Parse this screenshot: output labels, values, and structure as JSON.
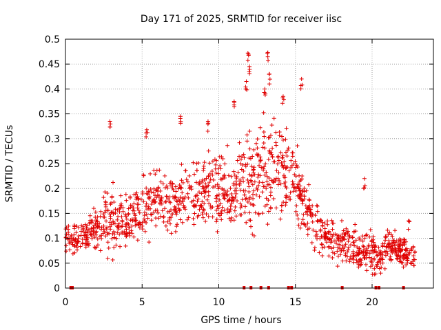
{
  "chart_data": {
    "type": "scatter",
    "title": "Day 171 of 2025, SRMTID for receiver iisc",
    "xlabel": "GPS time / hours",
    "ylabel": "SRMTID / TECUs",
    "xlim": [
      0,
      24
    ],
    "ylim": [
      0,
      0.5
    ],
    "grid": true,
    "marker": "+",
    "marker_color": "#e00000",
    "x_ticks": [
      0,
      5,
      10,
      15,
      20
    ],
    "x_tick_labels": [
      "0",
      "5",
      "10",
      "15",
      "20"
    ],
    "y_ticks": [
      0,
      0.05,
      0.1,
      0.15,
      0.2,
      0.25,
      0.3,
      0.35,
      0.4,
      0.45,
      0.5
    ],
    "y_tick_labels": [
      "0",
      "0.05",
      "0.1",
      "0.15",
      "0.2",
      "0.25",
      "0.3",
      "0.35",
      "0.4",
      "0.45",
      "0.5"
    ],
    "trend_note": "approximate envelope of the dense point cloud, values read from axes",
    "trend": {
      "x": [
        0.0,
        1.0,
        2.0,
        2.5,
        3.0,
        3.5,
        4.0,
        5.0,
        6.0,
        7.0,
        8.0,
        9.0,
        10.0,
        11.0,
        12.0,
        12.5,
        13.0,
        14.0,
        15.0,
        15.5,
        16.0,
        17.0,
        18.0,
        19.0,
        20.0,
        20.5,
        21.0,
        22.0,
        22.8
      ],
      "center": [
        0.1,
        0.1,
        0.12,
        0.13,
        0.14,
        0.13,
        0.14,
        0.16,
        0.17,
        0.17,
        0.18,
        0.19,
        0.19,
        0.2,
        0.21,
        0.22,
        0.24,
        0.23,
        0.22,
        0.18,
        0.14,
        0.1,
        0.09,
        0.08,
        0.07,
        0.06,
        0.09,
        0.07,
        0.06
      ],
      "spread": [
        0.03,
        0.03,
        0.04,
        0.06,
        0.08,
        0.05,
        0.05,
        0.06,
        0.06,
        0.06,
        0.06,
        0.07,
        0.07,
        0.07,
        0.08,
        0.09,
        0.1,
        0.09,
        0.08,
        0.07,
        0.05,
        0.04,
        0.04,
        0.04,
        0.04,
        0.03,
        0.04,
        0.03,
        0.03
      ]
    },
    "peaks": [
      {
        "x": 2.9,
        "y": 0.335
      },
      {
        "x": 5.3,
        "y": 0.318
      },
      {
        "x": 7.5,
        "y": 0.345
      },
      {
        "x": 9.3,
        "y": 0.335
      },
      {
        "x": 11.0,
        "y": 0.375
      },
      {
        "x": 11.8,
        "y": 0.415
      },
      {
        "x": 11.9,
        "y": 0.472
      },
      {
        "x": 12.0,
        "y": 0.445
      },
      {
        "x": 13.0,
        "y": 0.4
      },
      {
        "x": 13.2,
        "y": 0.473
      },
      {
        "x": 13.3,
        "y": 0.43
      },
      {
        "x": 14.2,
        "y": 0.385
      },
      {
        "x": 15.4,
        "y": 0.42
      },
      {
        "x": 19.5,
        "y": 0.22
      },
      {
        "x": 22.4,
        "y": 0.135
      }
    ],
    "zero_markers_x": [
      0.35,
      0.45,
      11.65,
      12.1,
      12.75,
      13.25,
      14.55,
      14.75,
      18.05,
      20.25,
      20.45,
      22.05
    ]
  }
}
